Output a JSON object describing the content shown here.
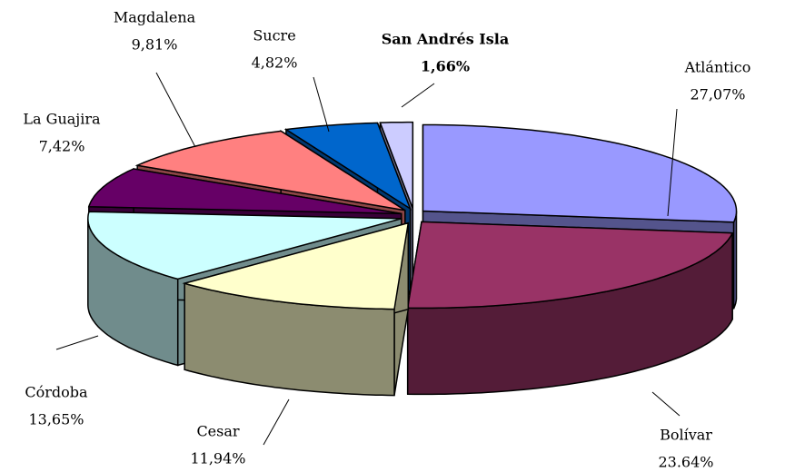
{
  "chart_data": {
    "type": "pie3d",
    "categories": [
      "Atlántico",
      "Bolívar",
      "Cesar",
      "Córdoba",
      "La Guajira",
      "Magdalena",
      "Sucre",
      "San Andrés Isla"
    ],
    "values": [
      27.07,
      23.64,
      11.94,
      13.65,
      7.42,
      9.81,
      4.82,
      1.66
    ],
    "value_labels": [
      "27,07%",
      "23.64%",
      "11,94%",
      "13,65%",
      "7,42%",
      "9,81%",
      "4,82%",
      "1,66%"
    ],
    "colors": [
      "#9999ff",
      "#993366",
      "#ffffcc",
      "#ccffff",
      "#660066",
      "#ff8080",
      "#0066cc",
      "#ccccff"
    ]
  }
}
